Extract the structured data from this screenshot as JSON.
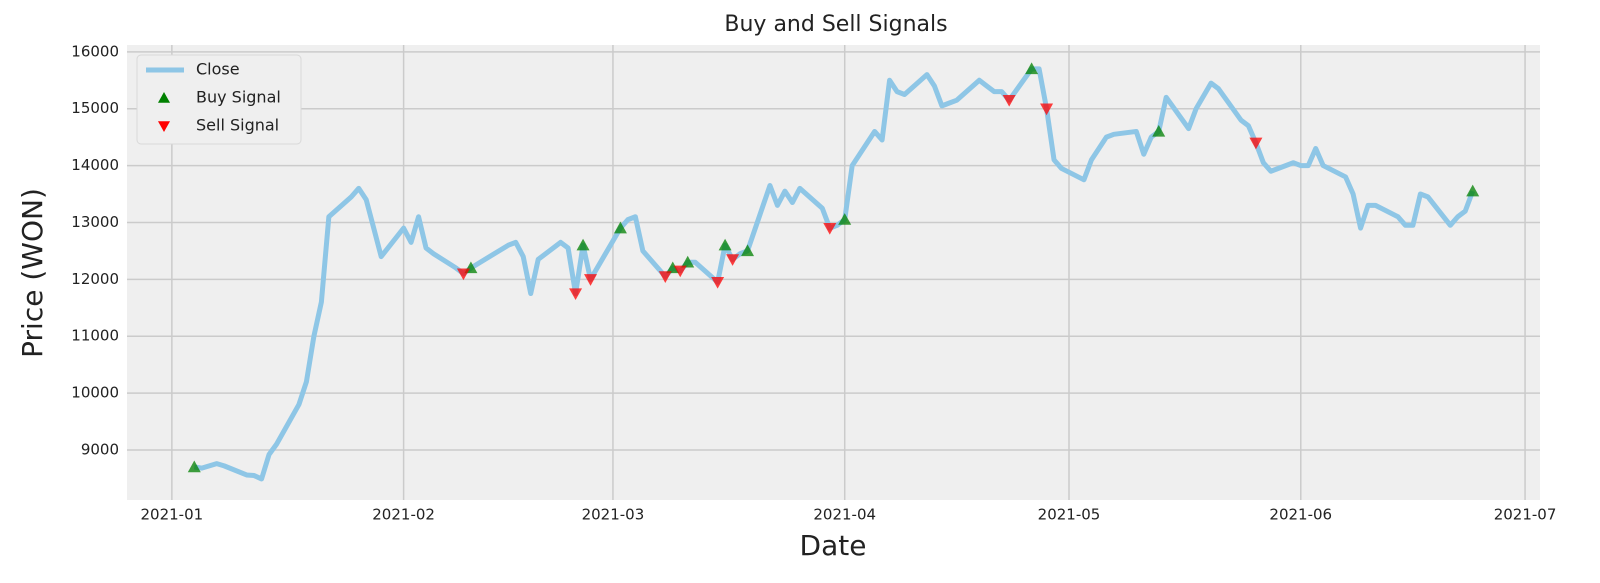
{
  "chart_data": {
    "type": "line",
    "title": "Buy and Sell Signals",
    "x_label": "Date",
    "y_label": "Price (WON)",
    "x": [
      "2021-01-04",
      "2021-01-05",
      "2021-01-06",
      "2021-01-07",
      "2021-01-08",
      "2021-01-11",
      "2021-01-12",
      "2021-01-13",
      "2021-01-14",
      "2021-01-15",
      "2021-01-18",
      "2021-01-19",
      "2021-01-20",
      "2021-01-21",
      "2021-01-22",
      "2021-01-25",
      "2021-01-26",
      "2021-01-27",
      "2021-01-28",
      "2021-01-29",
      "2021-02-01",
      "2021-02-02",
      "2021-02-03",
      "2021-02-04",
      "2021-02-05",
      "2021-02-08",
      "2021-02-09",
      "2021-02-10",
      "2021-02-15",
      "2021-02-16",
      "2021-02-17",
      "2021-02-18",
      "2021-02-19",
      "2021-02-22",
      "2021-02-23",
      "2021-02-24",
      "2021-02-25",
      "2021-02-26",
      "2021-03-02",
      "2021-03-03",
      "2021-03-04",
      "2021-03-05",
      "2021-03-08",
      "2021-03-09",
      "2021-03-10",
      "2021-03-11",
      "2021-03-12",
      "2021-03-15",
      "2021-03-16",
      "2021-03-17",
      "2021-03-18",
      "2021-03-19",
      "2021-03-22",
      "2021-03-23",
      "2021-03-24",
      "2021-03-25",
      "2021-03-26",
      "2021-03-29",
      "2021-03-30",
      "2021-03-31",
      "2021-04-01",
      "2021-04-02",
      "2021-04-05",
      "2021-04-06",
      "2021-04-07",
      "2021-04-08",
      "2021-04-09",
      "2021-04-12",
      "2021-04-13",
      "2021-04-14",
      "2021-04-15",
      "2021-04-16",
      "2021-04-19",
      "2021-04-20",
      "2021-04-21",
      "2021-04-22",
      "2021-04-23",
      "2021-04-26",
      "2021-04-27",
      "2021-04-28",
      "2021-04-29",
      "2021-04-30",
      "2021-05-03",
      "2021-05-04",
      "2021-05-06",
      "2021-05-07",
      "2021-05-10",
      "2021-05-11",
      "2021-05-12",
      "2021-05-13",
      "2021-05-14",
      "2021-05-17",
      "2021-05-18",
      "2021-05-20",
      "2021-05-21",
      "2021-05-24",
      "2021-05-25",
      "2021-05-26",
      "2021-05-27",
      "2021-05-28",
      "2021-05-31",
      "2021-06-01",
      "2021-06-02",
      "2021-06-03",
      "2021-06-04",
      "2021-06-07",
      "2021-06-08",
      "2021-06-09",
      "2021-06-10",
      "2021-06-11",
      "2021-06-14",
      "2021-06-15",
      "2021-06-16",
      "2021-06-17",
      "2021-06-18",
      "2021-06-21",
      "2021-06-22",
      "2021-06-23",
      "2021-06-24"
    ],
    "series": [
      {
        "name": "Close",
        "color": "#8ec6e6",
        "values": [
          8700,
          8680,
          8720,
          8760,
          8720,
          8560,
          8550,
          8490,
          8920,
          9100,
          9800,
          10200,
          11000,
          11600,
          13100,
          13450,
          13600,
          13400,
          12900,
          12400,
          12900,
          12650,
          13100,
          12550,
          12450,
          12200,
          12100,
          12200,
          12600,
          12650,
          12400,
          11750,
          12350,
          12650,
          12550,
          11750,
          12600,
          12000,
          12900,
          13050,
          13100,
          12500,
          12050,
          12200,
          12150,
          12300,
          12300,
          11950,
          12600,
          12350,
          12450,
          12500,
          13650,
          13300,
          13550,
          13350,
          13600,
          13250,
          12900,
          12950,
          13050,
          14000,
          14600,
          14450,
          15500,
          15300,
          15250,
          15600,
          15400,
          15050,
          15100,
          15150,
          15500,
          15400,
          15300,
          15300,
          15150,
          15700,
          15700,
          15000,
          14100,
          13950,
          13750,
          14100,
          14500,
          14550,
          14600,
          14200,
          14500,
          14600,
          15200,
          14650,
          15000,
          15450,
          15350,
          14800,
          14700,
          14400,
          14050,
          13900,
          14050,
          14000,
          14000,
          14300,
          14000,
          13800,
          13500,
          12900,
          13300,
          13300,
          13100,
          12950,
          12950,
          13500,
          13450,
          12950,
          13100,
          13200,
          13550
        ]
      },
      {
        "name": "Buy Signal",
        "color": "#008000",
        "marker": "triangle-up",
        "x": [
          "2021-01-04",
          "2021-02-10",
          "2021-02-25",
          "2021-03-02",
          "2021-03-09",
          "2021-03-11",
          "2021-03-16",
          "2021-03-19",
          "2021-04-01",
          "2021-04-26",
          "2021-05-13",
          "2021-06-24"
        ],
        "values": [
          8700,
          12200,
          12600,
          12900,
          12200,
          12300,
          12600,
          12500,
          13050,
          15700,
          14600,
          13550
        ]
      },
      {
        "name": "Sell Signal",
        "color": "#ff0000",
        "marker": "triangle-down",
        "x": [
          "2021-02-09",
          "2021-02-24",
          "2021-02-26",
          "2021-03-08",
          "2021-03-10",
          "2021-03-15",
          "2021-03-17",
          "2021-03-30",
          "2021-04-23",
          "2021-04-28",
          "2021-05-26"
        ],
        "values": [
          12100,
          11750,
          12000,
          12050,
          12150,
          11950,
          12350,
          12900,
          15150,
          15000,
          14400
        ]
      }
    ],
    "xlim": [
      "2020-12-26",
      "2021-07-03"
    ],
    "xticks": [
      {
        "value": "2021-01-01",
        "label": "2021-01"
      },
      {
        "value": "2021-02-01",
        "label": "2021-02"
      },
      {
        "value": "2021-03-01",
        "label": "2021-03"
      },
      {
        "value": "2021-04-01",
        "label": "2021-04"
      },
      {
        "value": "2021-05-01",
        "label": "2021-05"
      },
      {
        "value": "2021-06-01",
        "label": "2021-06"
      },
      {
        "value": "2021-07-01",
        "label": "2021-07"
      }
    ],
    "ylim": [
      8120,
      16120
    ],
    "yticks": [
      9000,
      10000,
      11000,
      12000,
      13000,
      14000,
      15000,
      16000
    ],
    "grid": true,
    "legend": "upper-left"
  }
}
